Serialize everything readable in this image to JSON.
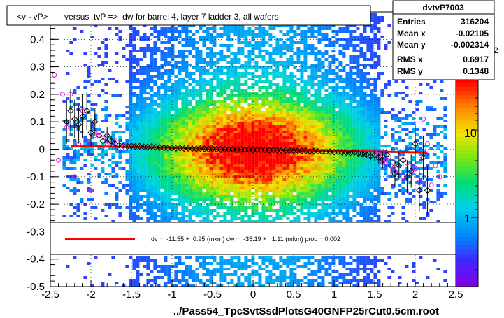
{
  "chart_data": {
    "type": "scatter",
    "title": "<v - vP>       versus  tvP =>  dw for barrel 4, layer 7 ladder 3, all wafers",
    "xlabel": "../Pass54_TpcSvtSsdPlotsG40GNFP25rCut0.5cm.root",
    "ylabel": "",
    "xlim": [
      -2.5,
      2.5
    ],
    "ylim": [
      -0.5,
      0.5
    ],
    "x_ticks": [
      "-2.5",
      "-2",
      "-1.5",
      "-1",
      "-0.5",
      "0",
      "0.5",
      "1",
      "1.5",
      "2",
      "2.5"
    ],
    "y_ticks": [
      "-0.5",
      "-0.4",
      "-0.3",
      "-0.2",
      "-0.1",
      "0",
      "0.1",
      "0.2",
      "0.3",
      "0.4"
    ],
    "colorbar": {
      "scale": "log",
      "tick_labels": [
        "1",
        "10"
      ],
      "exponent_label": "2"
    },
    "stats_box": {
      "name": "dvtvP7003",
      "rows": [
        {
          "label": "Entries",
          "value": "316204"
        },
        {
          "label": "Mean x",
          "value": "-0.02105"
        },
        {
          "label": "Mean y",
          "value": "-0.002314"
        },
        {
          "label": "RMS x",
          "value": "0.6917"
        },
        {
          "label": "RMS y",
          "value": "0.1348"
        }
      ]
    },
    "fit": {
      "legend_text": "dv =  -11.55 +  0.95 (mkm) dw =  -35.19 +   1.11 (mkm) prob = 0.002",
      "x_range": [
        -2.25,
        2.15
      ],
      "y_values": [
        0.012,
        -0.012
      ],
      "color": "#ff0000"
    },
    "series": [
      {
        "marker": "open-diamond",
        "color": "#000000",
        "x": [
          -2.3,
          -2.25,
          -2.2,
          -2.15,
          -2.1,
          -2.05,
          -2.0,
          -1.95,
          -1.9,
          -1.85,
          -1.8,
          -1.75,
          -1.7,
          -1.65,
          -1.6,
          -1.55,
          -1.5,
          -1.45,
          -1.4,
          -1.35,
          -1.3,
          -1.25,
          -1.2,
          -1.15,
          -1.1,
          -1.05,
          -1.0,
          -0.95,
          -0.9,
          -0.85,
          -0.8,
          -0.75,
          -0.7,
          -0.65,
          -0.6,
          -0.55,
          -0.5,
          -0.45,
          -0.4,
          -0.35,
          -0.3,
          -0.25,
          -0.2,
          -0.15,
          -0.1,
          -0.05,
          0.0,
          0.05,
          0.1,
          0.15,
          0.2,
          0.25,
          0.3,
          0.35,
          0.4,
          0.45,
          0.5,
          0.55,
          0.6,
          0.65,
          0.7,
          0.75,
          0.8,
          0.85,
          0.9,
          0.95,
          1.0,
          1.05,
          1.1,
          1.15,
          1.2,
          1.25,
          1.3,
          1.35,
          1.4,
          1.45,
          1.5,
          1.55,
          1.6,
          1.65,
          1.7,
          1.75,
          1.8,
          1.85,
          1.9,
          1.95,
          2.0,
          2.05,
          2.1,
          2.15
        ],
        "y": [
          0.1,
          0.14,
          0.11,
          0.09,
          0.12,
          0.14,
          0.06,
          0.1,
          0.05,
          0.03,
          0.05,
          0.03,
          0.02,
          0.015,
          0.012,
          0.01,
          0.012,
          0.01,
          0.011,
          0.009,
          0.008,
          0.01,
          0.007,
          0.006,
          0.005,
          0.004,
          0.005,
          0.003,
          0.004,
          0.002,
          0.003,
          0.002,
          0.001,
          0.002,
          0.001,
          0.0,
          0.001,
          0.0,
          -0.001,
          0.0,
          -0.001,
          0.0,
          -0.002,
          -0.001,
          -0.002,
          -0.001,
          -0.003,
          -0.002,
          -0.003,
          -0.002,
          -0.004,
          -0.003,
          -0.004,
          -0.005,
          -0.004,
          -0.005,
          -0.006,
          -0.005,
          -0.007,
          -0.006,
          -0.008,
          -0.007,
          -0.008,
          -0.009,
          -0.01,
          -0.009,
          -0.011,
          -0.01,
          -0.012,
          -0.013,
          -0.014,
          -0.012,
          -0.016,
          -0.018,
          -0.02,
          -0.025,
          -0.022,
          -0.03,
          -0.04,
          -0.02,
          -0.06,
          -0.09,
          -0.06,
          -0.04,
          -0.1,
          -0.08,
          0.02,
          -0.15,
          -0.03,
          -0.15
        ],
        "err": [
          0.08,
          0.08,
          0.07,
          0.07,
          0.08,
          0.07,
          0.05,
          0.05,
          0.04,
          0.03,
          0.03,
          0.02,
          0.015,
          0.01,
          0.008,
          0.006,
          0.005,
          0.004,
          0.004,
          0.004,
          0.003,
          0.003,
          0.003,
          0.003,
          0.003,
          0.003,
          0.002,
          0.002,
          0.002,
          0.002,
          0.002,
          0.002,
          0.002,
          0.002,
          0.002,
          0.002,
          0.002,
          0.002,
          0.002,
          0.002,
          0.002,
          0.002,
          0.002,
          0.002,
          0.002,
          0.002,
          0.002,
          0.002,
          0.002,
          0.002,
          0.002,
          0.002,
          0.002,
          0.002,
          0.002,
          0.002,
          0.002,
          0.002,
          0.002,
          0.002,
          0.003,
          0.003,
          0.003,
          0.003,
          0.003,
          0.003,
          0.003,
          0.004,
          0.004,
          0.004,
          0.005,
          0.006,
          0.008,
          0.01,
          0.012,
          0.015,
          0.02,
          0.025,
          0.03,
          0.03,
          0.04,
          0.05,
          0.05,
          0.05,
          0.06,
          0.06,
          0.07,
          0.08,
          0.08,
          0.09
        ]
      },
      {
        "marker": "open-circle",
        "color": "#e020e0",
        "x": [
          -2.45,
          -2.4,
          -2.35,
          -2.3,
          -2.25,
          -2.2,
          -2.15,
          -2.1,
          -2.05,
          -2.0,
          -1.95,
          -1.9,
          -1.85,
          -1.8,
          -1.7,
          -1.6,
          1.5,
          1.55,
          1.6,
          1.65,
          1.7,
          1.75,
          1.8,
          1.85,
          1.9,
          1.95,
          2.0,
          2.05,
          2.1,
          2.15,
          2.2,
          2.25,
          2.3
        ],
        "y": [
          0.27,
          -0.04,
          0.2,
          0.08,
          0.2,
          -0.1,
          0.02,
          0.14,
          0.03,
          -0.15,
          0.05,
          0.06,
          0.04,
          0.02,
          0.03,
          0.01,
          -0.01,
          -0.02,
          -0.05,
          -0.04,
          -0.06,
          -0.08,
          -0.03,
          -0.1,
          -0.05,
          -0.09,
          -0.07,
          -0.12,
          0.11,
          0.02,
          -0.13,
          -0.06,
          -0.1
        ]
      }
    ],
    "background_density": {
      "type": "heatmap",
      "x_extent": [
        -2.35,
        2.35
      ],
      "y_extent": [
        -0.5,
        0.5
      ],
      "core_x_half_width": 1.55,
      "core_y_sigma": 0.13
    }
  }
}
